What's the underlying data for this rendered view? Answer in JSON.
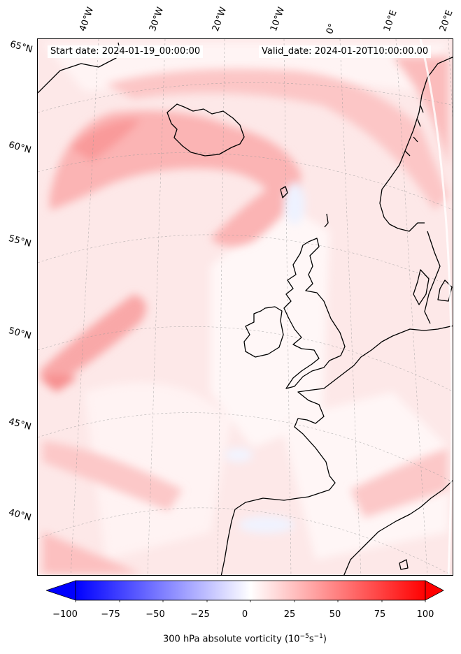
{
  "header": {
    "start_label": "Start date: 2024-01-19_00:00:00",
    "valid_label": "Valid_date: 2024-01-20T10:00:00.00"
  },
  "map": {
    "lon_labels": [
      "40°W",
      "30°W",
      "20°W",
      "10°W",
      "0°",
      "10°E",
      "20°E"
    ],
    "lat_labels": [
      "65°N",
      "60°N",
      "55°N",
      "50°N",
      "45°N",
      "40°N"
    ],
    "field": "300 hPa absolute vorticity",
    "colormap": "bwr"
  },
  "colorbar": {
    "ticks": [
      "−100",
      "−75",
      "−50",
      "−25",
      "0",
      "25",
      "50",
      "75",
      "100"
    ],
    "title_main": "300 hPa absolute vorticity (10",
    "title_exp1": "−5",
    "title_mid": "s",
    "title_exp2": "−1",
    "title_end": ")",
    "min_color": "#0000ff",
    "mid_color": "#ffffff",
    "max_color": "#ff0000"
  }
}
